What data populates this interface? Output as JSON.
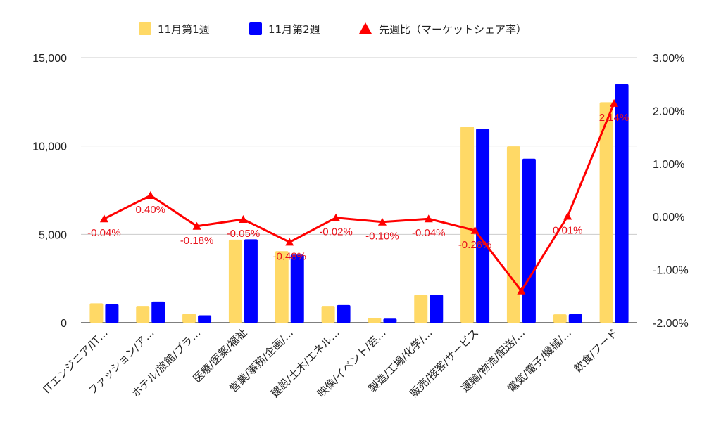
{
  "chart_data": {
    "type": "bar",
    "categories": [
      "ITエンジニア/IT…",
      "ファッション/ア…",
      "ホテル/旅館/ブラ…",
      "医療/医薬/福祉",
      "営業/事務/企画/…",
      "建設/土木/エネル…",
      "映像/イベント/芸…",
      "製造/工場/化学/…",
      "販売/接客/サービス",
      "運輸/物流/配送/…",
      "電気/電子/機械/…",
      "飲食/フード"
    ],
    "series": [
      {
        "name": "11月第1週",
        "type": "bar",
        "axis": "left",
        "color": "#ffd966",
        "values": [
          1100,
          950,
          500,
          4700,
          4050,
          950,
          280,
          1580,
          11100,
          9980,
          470,
          12480
        ]
      },
      {
        "name": "11月第2週",
        "type": "bar",
        "axis": "left",
        "color": "#0000ff",
        "values": [
          1050,
          1200,
          420,
          4720,
          3850,
          1000,
          230,
          1590,
          10980,
          9280,
          480,
          13500
        ]
      },
      {
        "name": "先週比（マーケットシェア率）",
        "type": "line",
        "axis": "right",
        "color": "#ff0000",
        "values": [
          -0.04,
          0.4,
          -0.18,
          -0.05,
          -0.48,
          -0.02,
          -0.1,
          -0.04,
          -0.26,
          -1.4,
          0.01,
          2.14
        ]
      }
    ],
    "data_labels": [
      "-0.04%",
      "0.40%",
      "-0.18%",
      "-0.05%",
      "-0.48%",
      "-0.02%",
      "-0.10%",
      "-0.04%",
      "-0.26%",
      "",
      "0.01%",
      "2.14%"
    ],
    "y_left": {
      "ylim": [
        0,
        15000
      ],
      "ticks": [
        "0",
        "5,000",
        "10,000",
        "15,000"
      ]
    },
    "y_right": {
      "ylim": [
        -2,
        3
      ],
      "ticks": [
        "-2.00%",
        "-1.00%",
        "0.00%",
        "1.00%",
        "2.00%",
        "3.00%"
      ]
    },
    "legend_position": "top",
    "grid": true
  }
}
